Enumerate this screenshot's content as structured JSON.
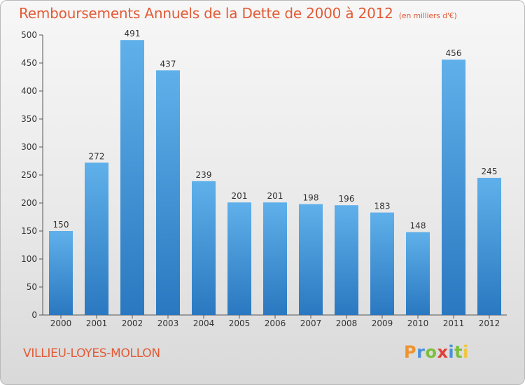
{
  "header": {
    "title": "Remboursements Annuels de la Dette de 2000 à 2012",
    "unit": "(en milliers d'€)"
  },
  "footer": {
    "commune": "VILLIEU-LOYES-MOLLON",
    "logo_letters": [
      "P",
      "r",
      "o",
      "x",
      "i",
      "t",
      "i"
    ],
    "logo_colors": [
      "#f0932e",
      "#4a90d9",
      "#7cbf3a",
      "#e0403a",
      "#4a90d9",
      "#7cbf3a",
      "#f0c53a"
    ]
  },
  "chart_data": {
    "type": "bar",
    "title": "Remboursements Annuels de la Dette de 2000 à 2012",
    "xlabel": "",
    "ylabel": "",
    "categories": [
      "2000",
      "2001",
      "2002",
      "2003",
      "2004",
      "2005",
      "2006",
      "2007",
      "2008",
      "2009",
      "2010",
      "2011",
      "2012"
    ],
    "values": [
      150,
      272,
      491,
      437,
      239,
      201,
      201,
      198,
      196,
      183,
      148,
      456,
      245
    ],
    "ylim": [
      0,
      500
    ],
    "yticks": [
      0,
      50,
      100,
      150,
      200,
      250,
      300,
      350,
      400,
      450,
      500
    ],
    "grid": false,
    "bar_color": "#3b8fd6"
  }
}
